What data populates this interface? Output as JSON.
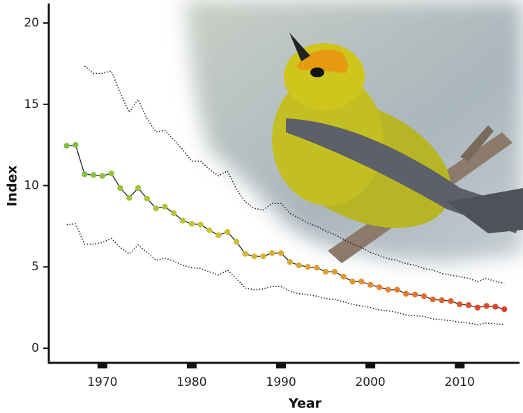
{
  "chart_data": {
    "type": "line",
    "x": [
      1966,
      1967,
      1968,
      1969,
      1970,
      1971,
      1972,
      1973,
      1974,
      1975,
      1976,
      1977,
      1978,
      1979,
      1980,
      1981,
      1982,
      1983,
      1984,
      1985,
      1986,
      1987,
      1988,
      1989,
      1990,
      1991,
      1992,
      1993,
      1994,
      1995,
      1996,
      1997,
      1998,
      1999,
      2000,
      2001,
      2002,
      2003,
      2004,
      2005,
      2006,
      2007,
      2008,
      2009,
      2010,
      2011,
      2012,
      2013,
      2014,
      2015
    ],
    "series": [
      {
        "values": [
          12.45,
          12.5,
          10.7,
          10.65,
          10.6,
          10.75,
          9.85,
          9.25,
          9.85,
          9.2,
          8.6,
          8.7,
          8.3,
          7.85,
          7.65,
          7.6,
          7.25,
          6.95,
          7.15,
          6.55,
          5.8,
          5.65,
          5.65,
          5.85,
          5.85,
          5.3,
          5.1,
          5.0,
          4.95,
          4.7,
          4.7,
          4.4,
          4.1,
          4.1,
          3.9,
          3.75,
          3.6,
          3.6,
          3.35,
          3.3,
          3.2,
          3.0,
          2.95,
          2.9,
          2.7,
          2.65,
          2.5,
          2.6,
          2.55,
          2.4
        ],
        "color": "#222222",
        "marker_colors": [
          "#7dc242",
          "#cdc433",
          "#e8932e",
          "#d8412b"
        ]
      },
      {
        "values": [
          null,
          null,
          17.35,
          16.9,
          16.9,
          17.05,
          15.7,
          14.5,
          15.3,
          14.1,
          13.3,
          13.4,
          12.8,
          12.2,
          11.5,
          11.5,
          11.0,
          10.6,
          10.9,
          9.8,
          9.0,
          8.6,
          8.5,
          8.9,
          8.9,
          8.3,
          8.0,
          7.7,
          7.5,
          7.2,
          7.0,
          6.7,
          6.4,
          6.2,
          5.9,
          5.7,
          5.5,
          5.4,
          5.2,
          5.1,
          4.9,
          4.8,
          4.6,
          4.5,
          4.4,
          4.3,
          4.1,
          4.3,
          4.1,
          4.0
        ],
        "color": "#222222",
        "dashed": true
      },
      {
        "values": [
          7.6,
          7.65,
          6.4,
          6.4,
          6.5,
          6.75,
          6.2,
          5.8,
          6.35,
          5.9,
          5.4,
          5.55,
          5.35,
          5.1,
          4.95,
          4.9,
          4.7,
          4.5,
          4.8,
          4.3,
          3.7,
          3.6,
          3.65,
          3.8,
          3.8,
          3.5,
          3.35,
          3.3,
          3.2,
          3.05,
          3.0,
          2.85,
          2.7,
          2.6,
          2.5,
          2.35,
          2.3,
          2.2,
          2.05,
          2.0,
          1.95,
          1.8,
          1.75,
          1.7,
          1.6,
          1.55,
          1.45,
          1.55,
          1.5,
          1.45
        ],
        "color": "#222222",
        "dashed": true
      }
    ],
    "x_label": "Year",
    "y_label": "Index",
    "xlim": [
      1964,
      2016.7
    ],
    "xticks": [
      1970,
      1980,
      1990,
      2000,
      2010
    ],
    "ylim": [
      -0.9,
      21.2
    ],
    "yticks": [
      0,
      5,
      10,
      15,
      20
    ]
  }
}
